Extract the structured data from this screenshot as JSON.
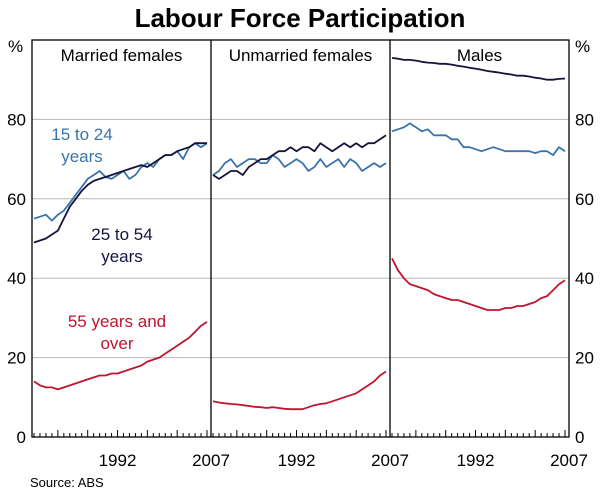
{
  "title": "Labour Force Participation",
  "source": "Source: ABS",
  "colors": {
    "young": "#3a74a8",
    "prime": "#14143c",
    "older": "#c0152f",
    "frame": "#000000",
    "grid": "#b8b8b8"
  },
  "chart_data": {
    "type": "line",
    "title": "Labour Force Participation",
    "ylim": [
      0,
      100
    ],
    "yticks": [
      "0",
      "20",
      "40",
      "60",
      "80",
      "%"
    ],
    "xlim": [
      1978,
      2007
    ],
    "grid": true,
    "panels": [
      {
        "title": "Married females",
        "xticks": [
          "1992",
          "2007"
        ],
        "annotations": [
          {
            "series": "young",
            "lines": [
              "15 to 24",
              "years"
            ]
          },
          {
            "series": "prime",
            "lines": [
              "25 to 54",
              "years"
            ]
          },
          {
            "series": "older",
            "lines": [
              "55 years and",
              "over"
            ]
          }
        ],
        "series": [
          {
            "key": "young",
            "x": [
              1978,
              1979,
              1980,
              1981,
              1982,
              1983,
              1984,
              1985,
              1986,
              1987,
              1988,
              1989,
              1990,
              1991,
              1992,
              1993,
              1994,
              1995,
              1996,
              1997,
              1998,
              1999,
              2000,
              2001,
              2002,
              2003,
              2004,
              2005,
              2006,
              2007
            ],
            "values": [
              55,
              55.5,
              56,
              54.5,
              56,
              57,
              59,
              61,
              63,
              65,
              66,
              67,
              65.5,
              65,
              66,
              67,
              65,
              66,
              68,
              69,
              68,
              70,
              71,
              71,
              72,
              70,
              73,
              74,
              73,
              74
            ]
          },
          {
            "key": "prime",
            "x": [
              1978,
              1979,
              1980,
              1981,
              1982,
              1983,
              1984,
              1985,
              1986,
              1987,
              1988,
              1989,
              1990,
              1991,
              1992,
              1993,
              1994,
              1995,
              1996,
              1997,
              1998,
              1999,
              2000,
              2001,
              2002,
              2003,
              2004,
              2005,
              2006,
              2007
            ],
            "values": [
              49,
              49.5,
              50,
              51,
              52,
              55,
              58,
              60,
              62,
              63.5,
              64.5,
              65,
              65.5,
              66,
              66.5,
              67,
              67.5,
              68,
              68.5,
              68,
              69,
              70,
              71,
              71,
              72,
              72.5,
              73,
              74,
              74,
              74
            ]
          },
          {
            "key": "older",
            "x": [
              1978,
              1979,
              1980,
              1981,
              1982,
              1983,
              1984,
              1985,
              1986,
              1987,
              1988,
              1989,
              1990,
              1991,
              1992,
              1993,
              1994,
              1995,
              1996,
              1997,
              1998,
              1999,
              2000,
              2001,
              2002,
              2003,
              2004,
              2005,
              2006,
              2007
            ],
            "values": [
              14,
              13,
              12.5,
              12.5,
              12,
              12.5,
              13,
              13.5,
              14,
              14.5,
              15,
              15.5,
              15.5,
              16,
              16,
              16.5,
              17,
              17.5,
              18,
              19,
              19.5,
              20,
              21,
              22,
              23,
              24,
              25,
              26.5,
              28,
              29
            ]
          }
        ]
      },
      {
        "title": "Unmarried females",
        "xticks": [
          "1992",
          "2007"
        ],
        "annotations": [],
        "series": [
          {
            "key": "young",
            "x": [
              1978,
              1979,
              1980,
              1981,
              1982,
              1983,
              1984,
              1985,
              1986,
              1987,
              1988,
              1989,
              1990,
              1991,
              1992,
              1993,
              1994,
              1995,
              1996,
              1997,
              1998,
              1999,
              2000,
              2001,
              2002,
              2003,
              2004,
              2005,
              2006,
              2007
            ],
            "values": [
              66,
              67,
              69,
              70,
              68,
              69,
              70,
              70,
              69,
              69,
              71,
              70,
              68,
              69,
              70,
              69,
              67,
              68,
              70,
              68,
              69,
              70,
              68,
              70,
              69,
              67,
              68,
              69,
              68,
              69
            ]
          },
          {
            "key": "prime",
            "x": [
              1978,
              1979,
              1980,
              1981,
              1982,
              1983,
              1984,
              1985,
              1986,
              1987,
              1988,
              1989,
              1990,
              1991,
              1992,
              1993,
              1994,
              1995,
              1996,
              1997,
              1998,
              1999,
              2000,
              2001,
              2002,
              2003,
              2004,
              2005,
              2006,
              2007
            ],
            "values": [
              66,
              65,
              66,
              67,
              67,
              66,
              68,
              69,
              70,
              70,
              71,
              72,
              72,
              73,
              72,
              73,
              73,
              72,
              74,
              73,
              72,
              73,
              74,
              73,
              74,
              73,
              74,
              74,
              75,
              76
            ]
          },
          {
            "key": "older",
            "x": [
              1978,
              1979,
              1980,
              1981,
              1982,
              1983,
              1984,
              1985,
              1986,
              1987,
              1988,
              1989,
              1990,
              1991,
              1992,
              1993,
              1994,
              1995,
              1996,
              1997,
              1998,
              1999,
              2000,
              2001,
              2002,
              2003,
              2004,
              2005,
              2006,
              2007
            ],
            "values": [
              9,
              8.7,
              8.5,
              8.3,
              8.2,
              8,
              7.8,
              7.6,
              7.5,
              7.3,
              7.5,
              7.3,
              7.1,
              7,
              7,
              7,
              7.5,
              8,
              8.3,
              8.5,
              9,
              9.5,
              10,
              10.5,
              11,
              12,
              13,
              14,
              15.5,
              16.5
            ]
          }
        ]
      },
      {
        "title": "Males",
        "xticks": [
          "1992",
          "2007"
        ],
        "annotations": [],
        "series": [
          {
            "key": "prime",
            "x": [
              1978,
              1979,
              1980,
              1981,
              1982,
              1983,
              1984,
              1985,
              1986,
              1987,
              1988,
              1989,
              1990,
              1991,
              1992,
              1993,
              1994,
              1995,
              1996,
              1997,
              1998,
              1999,
              2000,
              2001,
              2002,
              2003,
              2004,
              2005,
              2006,
              2007
            ],
            "values": [
              95.5,
              95.3,
              95,
              95,
              94.8,
              94.5,
              94.3,
              94.2,
              94,
              94,
              93.8,
              93.5,
              93.3,
              93,
              92.8,
              92.5,
              92.2,
              92,
              91.8,
              91.5,
              91.3,
              91,
              91,
              90.8,
              90.5,
              90.3,
              90,
              90,
              90.2,
              90.3
            ]
          },
          {
            "key": "young",
            "x": [
              1978,
              1979,
              1980,
              1981,
              1982,
              1983,
              1984,
              1985,
              1986,
              1987,
              1988,
              1989,
              1990,
              1991,
              1992,
              1993,
              1994,
              1995,
              1996,
              1997,
              1998,
              1999,
              2000,
              2001,
              2002,
              2003,
              2004,
              2005,
              2006,
              2007
            ],
            "values": [
              77,
              77.5,
              78,
              79,
              78,
              77,
              77.5,
              76,
              76,
              76,
              75,
              75,
              73,
              73,
              72.5,
              72,
              72.5,
              73,
              72.5,
              72,
              72,
              72,
              72,
              72,
              71.5,
              72,
              72,
              71,
              73,
              72
            ]
          },
          {
            "key": "older",
            "x": [
              1978,
              1979,
              1980,
              1981,
              1982,
              1983,
              1984,
              1985,
              1986,
              1987,
              1988,
              1989,
              1990,
              1991,
              1992,
              1993,
              1994,
              1995,
              1996,
              1997,
              1998,
              1999,
              2000,
              2001,
              2002,
              2003,
              2004,
              2005,
              2006,
              2007
            ],
            "values": [
              45,
              42,
              40,
              38.5,
              38,
              37.5,
              37,
              36,
              35.5,
              35,
              34.5,
              34.5,
              34,
              33.5,
              33,
              32.5,
              32,
              32,
              32,
              32.5,
              32.5,
              33,
              33,
              33.5,
              34,
              35,
              35.5,
              37,
              38.5,
              39.5
            ]
          }
        ]
      }
    ]
  }
}
